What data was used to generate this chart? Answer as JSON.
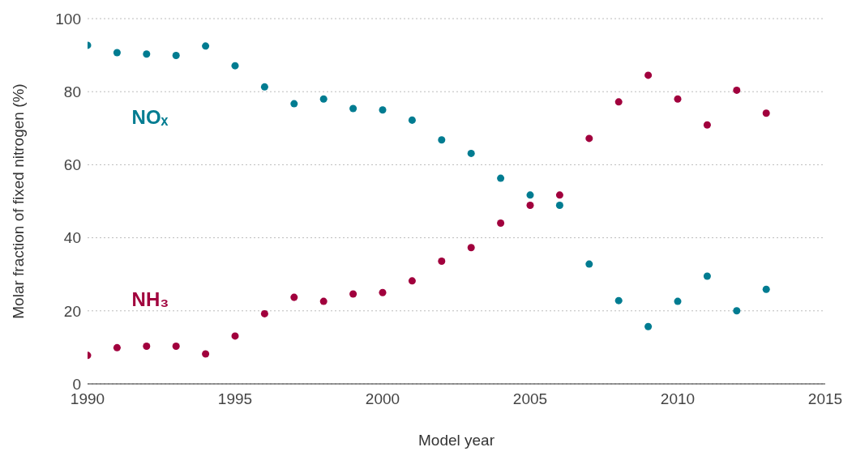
{
  "chart_data": {
    "type": "scatter",
    "xlabel": "Model year",
    "ylabel": "Molar fraction of fixed nitrogen (%)",
    "x": [
      1990,
      1991,
      1992,
      1993,
      1994,
      1995,
      1996,
      1997,
      1998,
      1999,
      2000,
      2001,
      2002,
      2003,
      2004,
      2005,
      2006,
      2007,
      2008,
      2009,
      2010,
      2011,
      2012,
      2013
    ],
    "series": [
      {
        "name": "NOₓ",
        "color": "#007c91",
        "values": [
          92.7,
          90.7,
          90.3,
          89.9,
          92.5,
          87.1,
          81.3,
          76.7,
          78.0,
          75.4,
          75.0,
          72.2,
          66.8,
          63.1,
          56.3,
          51.7,
          48.9,
          32.8,
          22.8,
          15.7,
          22.6,
          29.5,
          20.0,
          25.9
        ]
      },
      {
        "name": "NH₃",
        "color": "#a1003d",
        "values": [
          7.8,
          9.9,
          10.3,
          10.3,
          8.2,
          13.1,
          19.2,
          23.7,
          22.6,
          24.6,
          25.0,
          28.2,
          33.6,
          37.3,
          44.0,
          48.9,
          51.7,
          67.2,
          77.2,
          84.5,
          78.0,
          70.9,
          80.4,
          74.1
        ]
      }
    ],
    "xlim": [
      1990,
      2015
    ],
    "xticks": [
      1990,
      1995,
      2000,
      2005,
      2010,
      2015
    ],
    "ylim": [
      0,
      100
    ],
    "yticks": [
      0,
      20,
      40,
      60,
      80,
      100
    ],
    "grid": "y",
    "legend": false,
    "marker": "circle"
  }
}
